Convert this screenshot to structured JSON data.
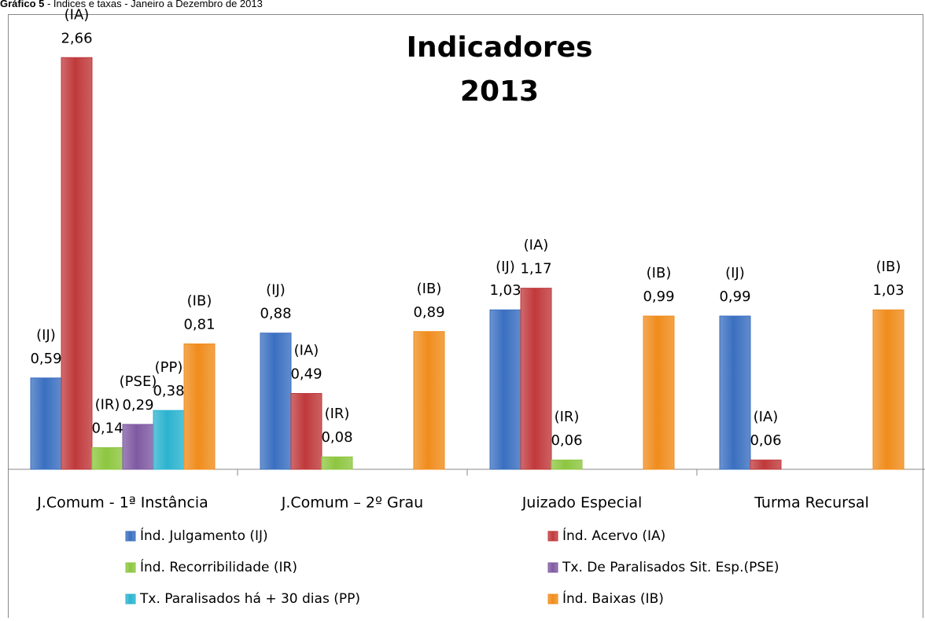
{
  "chart_data": {
    "type": "bar",
    "caption": {
      "label": "Gráfico 5",
      "text": " - Índices e taxas - Janeiro a Dezembro de 2013"
    },
    "title": [
      "Indicadores",
      "2013"
    ],
    "categories": [
      "J.Comum - 1ª Instância",
      "J.Comum – 2º Grau",
      "Juizado Especial",
      "Turma Recursal"
    ],
    "series": [
      {
        "name": "Índ. Julgamento (IJ)",
        "tag": "(IJ)",
        "color": "#3a6fc0",
        "values": [
          0.59,
          0.88,
          1.03,
          0.99
        ],
        "value_labels": [
          "0,59",
          "0,88",
          "1,03",
          "0,99"
        ]
      },
      {
        "name": "Índ. Acervo (IA)",
        "tag": "(IA)",
        "color": "#c0393b",
        "values": [
          2.66,
          0.49,
          1.17,
          0.06
        ],
        "value_labels": [
          "2,66",
          "0,49",
          "1,17",
          "0,06"
        ]
      },
      {
        "name": "Índ. Recorribilidade  (IR)",
        "tag": "(IR)",
        "color": "#8dc63f",
        "values": [
          0.14,
          0.08,
          0.06,
          null
        ],
        "value_labels": [
          "0,14",
          "0,08",
          "0,06",
          null
        ]
      },
      {
        "name": "Tx. De Paralisados Sit. Esp.(PSE)",
        "tag": "(PSE)",
        "color": "#7f5aa2",
        "values": [
          0.29,
          null,
          null,
          null
        ],
        "value_labels": [
          "0,29",
          null,
          null,
          null
        ]
      },
      {
        "name": "Tx. Paralisados há + 30 dias (PP)",
        "tag": "(PP)",
        "color": "#2bb3cf",
        "values": [
          0.38,
          null,
          null,
          null
        ],
        "value_labels": [
          "0,38",
          null,
          null,
          null
        ]
      },
      {
        "name": "Índ. Baixas (IB)",
        "tag": "(IB)",
        "color": "#f08c1c",
        "values": [
          0.81,
          0.89,
          0.99,
          1.03
        ],
        "value_labels": [
          "0,81",
          "0,89",
          "0,99",
          "1,03"
        ]
      }
    ],
    "ylim": [
      0,
      2.9
    ],
    "legend": "bottom"
  }
}
